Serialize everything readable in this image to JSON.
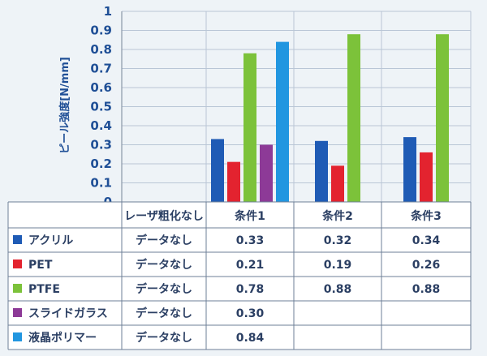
{
  "chart_data": {
    "type": "bar",
    "ylabel": "ピール強度[N/mm]",
    "ylim": [
      0,
      1
    ],
    "yticks": [
      "0",
      "0.1",
      "0.2",
      "0.3",
      "0.4",
      "0.5",
      "0.6",
      "0.7",
      "0.8",
      "0.9",
      "1"
    ],
    "grid": true,
    "categories": [
      "レーザ粗化なし",
      "条件1",
      "条件2",
      "条件3"
    ],
    "series": [
      {
        "name": "アクリル",
        "color": "#1f5bb5",
        "values": [
          null,
          0.33,
          0.32,
          0.34
        ],
        "labels": [
          "データなし",
          "0.33",
          "0.32",
          "0.34"
        ]
      },
      {
        "name": "PET",
        "color": "#e3232f",
        "values": [
          null,
          0.21,
          0.19,
          0.26
        ],
        "labels": [
          "データなし",
          "0.21",
          "0.19",
          "0.26"
        ]
      },
      {
        "name": "PTFE",
        "color": "#7cc23a",
        "values": [
          null,
          0.78,
          0.88,
          0.88
        ],
        "labels": [
          "データなし",
          "0.78",
          "0.88",
          "0.88"
        ]
      },
      {
        "name": "スライドガラス",
        "color": "#8d3a97",
        "values": [
          null,
          0.3,
          null,
          null
        ],
        "labels": [
          "データなし",
          "0.30",
          "",
          ""
        ]
      },
      {
        "name": "液晶ポリマー",
        "color": "#2196e0",
        "values": [
          null,
          0.84,
          null,
          null
        ],
        "labels": [
          "データなし",
          "0.84",
          "",
          ""
        ]
      }
    ]
  }
}
